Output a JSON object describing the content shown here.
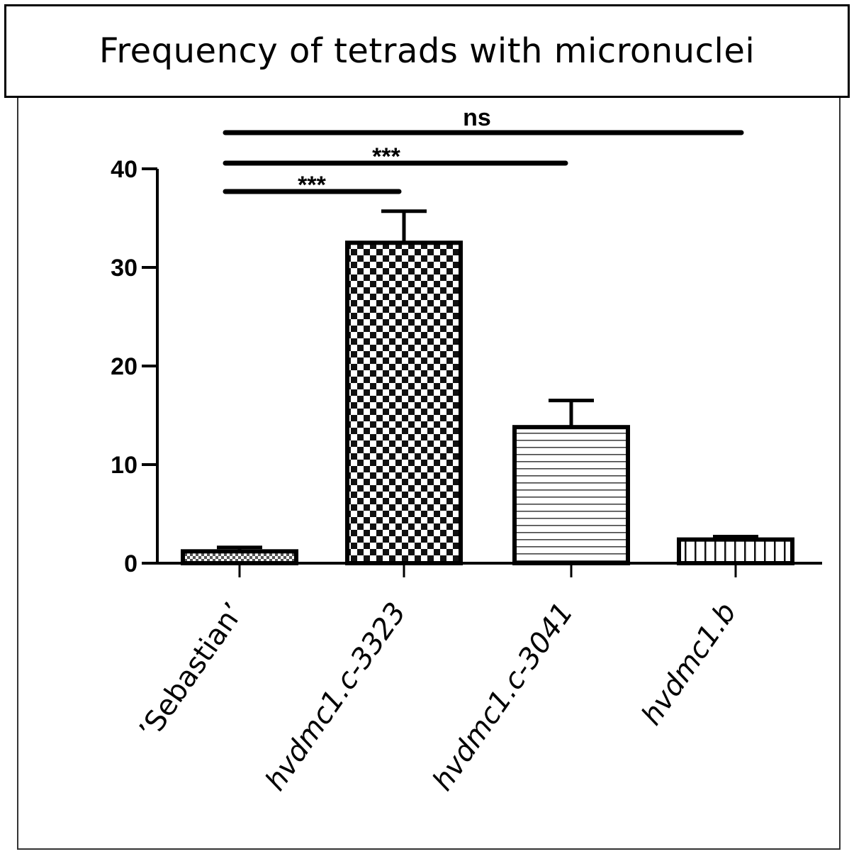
{
  "chart_data": {
    "type": "bar",
    "title": "Frequency of tetrads with micronuclei",
    "xlabel": "",
    "ylabel": "",
    "ylim": [
      0,
      40
    ],
    "yticks": [
      0,
      10,
      20,
      30,
      40
    ],
    "categories": [
      "’Sebastian’",
      "hvdmc1.c-3323",
      "hvdmc1.c-3041",
      "hvdmc1.b"
    ],
    "category_italic": [
      false,
      true,
      true,
      true
    ],
    "values": [
      1.2,
      32.5,
      13.8,
      2.4
    ],
    "errors": [
      0.4,
      3.2,
      2.7,
      0.3
    ],
    "patterns": [
      "dots",
      "checker",
      "horizontal-lines",
      "vertical-lines"
    ],
    "significance": [
      {
        "from": 0,
        "to": 1,
        "label": "***"
      },
      {
        "from": 0,
        "to": 2,
        "label": "***"
      },
      {
        "from": 0,
        "to": 3,
        "label": "ns"
      }
    ],
    "grid": false,
    "legend": "none"
  }
}
